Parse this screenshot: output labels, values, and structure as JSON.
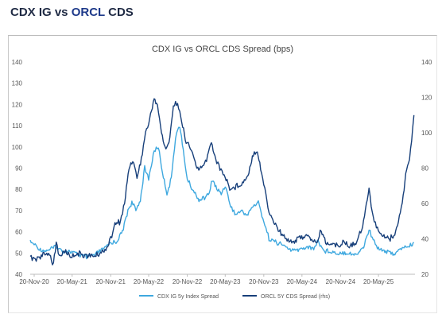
{
  "header": {
    "title_prefix": "CDX IG vs ",
    "title_accent": "ORCL",
    "title_suffix": " CDS"
  },
  "colors": {
    "cdx_ig": "#3ea8df",
    "orcl": "#173f7a",
    "title_accent": "#1e3a8a"
  },
  "chart_data": {
    "type": "line",
    "title": "CDX IG vs ORCL CDS Spread (bps)",
    "x_ticks": [
      "20-Nov-20",
      "20-May-21",
      "20-Nov-21",
      "20-May-22",
      "20-Nov-22",
      "20-May-23",
      "20-Nov-23",
      "20-May-24",
      "20-Nov-24",
      "20-May-25"
    ],
    "xlim": [
      "2020-11-01",
      "2025-11-10"
    ],
    "y_left": {
      "lim": [
        40,
        140
      ],
      "ticks": [
        40,
        50,
        60,
        70,
        80,
        90,
        100,
        110,
        120,
        130,
        140
      ]
    },
    "y_right": {
      "lim": [
        20,
        140
      ],
      "ticks": [
        20,
        40,
        60,
        80,
        100,
        120,
        140
      ],
      "label": ""
    },
    "legend": "bottom-center",
    "grid": false,
    "series": [
      {
        "name": "CDX IG 5y Index Spread",
        "axis": "left",
        "color": "#3ea8df",
        "points": [
          [
            "2020-11-01",
            55
          ],
          [
            "2020-11-20",
            54
          ],
          [
            "2020-12-15",
            52
          ],
          [
            "2021-01-10",
            51
          ],
          [
            "2021-02-05",
            52
          ],
          [
            "2021-03-05",
            53
          ],
          [
            "2021-04-01",
            51
          ],
          [
            "2021-05-01",
            51
          ],
          [
            "2021-06-01",
            50
          ],
          [
            "2021-07-01",
            49
          ],
          [
            "2021-08-01",
            48
          ],
          [
            "2021-09-01",
            49
          ],
          [
            "2021-10-01",
            51
          ],
          [
            "2021-11-01",
            53
          ],
          [
            "2021-11-20",
            55
          ],
          [
            "2021-12-15",
            55
          ],
          [
            "2022-01-15",
            60
          ],
          [
            "2022-02-10",
            70
          ],
          [
            "2022-03-01",
            74
          ],
          [
            "2022-03-20",
            70
          ],
          [
            "2022-04-10",
            75
          ],
          [
            "2022-05-01",
            90
          ],
          [
            "2022-05-20",
            85
          ],
          [
            "2022-06-15",
            98
          ],
          [
            "2022-07-05",
            100
          ],
          [
            "2022-07-25",
            88
          ],
          [
            "2022-08-15",
            78
          ],
          [
            "2022-09-05",
            85
          ],
          [
            "2022-09-25",
            105
          ],
          [
            "2022-10-15",
            110
          ],
          [
            "2022-11-05",
            95
          ],
          [
            "2022-11-20",
            85
          ],
          [
            "2022-12-15",
            80
          ],
          [
            "2023-01-15",
            75
          ],
          [
            "2023-02-10",
            76
          ],
          [
            "2023-03-05",
            78
          ],
          [
            "2023-03-20",
            85
          ],
          [
            "2023-04-10",
            80
          ],
          [
            "2023-05-01",
            78
          ],
          [
            "2023-05-20",
            82
          ],
          [
            "2023-06-15",
            72
          ],
          [
            "2023-07-10",
            68
          ],
          [
            "2023-08-05",
            70
          ],
          [
            "2023-09-01",
            68
          ],
          [
            "2023-10-01",
            72
          ],
          [
            "2023-10-25",
            74
          ],
          [
            "2023-11-20",
            65
          ],
          [
            "2023-12-15",
            57
          ],
          [
            "2024-01-15",
            55
          ],
          [
            "2024-02-15",
            54
          ],
          [
            "2024-03-15",
            52
          ],
          [
            "2024-04-15",
            51
          ],
          [
            "2024-05-15",
            52
          ],
          [
            "2024-06-15",
            53
          ],
          [
            "2024-07-15",
            52
          ],
          [
            "2024-08-05",
            56
          ],
          [
            "2024-09-01",
            51
          ],
          [
            "2024-10-01",
            51
          ],
          [
            "2024-11-01",
            50
          ],
          [
            "2024-12-01",
            50
          ],
          [
            "2025-01-01",
            50
          ],
          [
            "2025-02-01",
            49
          ],
          [
            "2025-03-10",
            53
          ],
          [
            "2025-04-05",
            61
          ],
          [
            "2025-04-20",
            57
          ],
          [
            "2025-05-15",
            53
          ],
          [
            "2025-06-15",
            51
          ],
          [
            "2025-07-15",
            50
          ],
          [
            "2025-08-15",
            50
          ],
          [
            "2025-09-15",
            53
          ],
          [
            "2025-10-15",
            53
          ],
          [
            "2025-11-05",
            55
          ]
        ]
      },
      {
        "name": "ORCL 5Y CDS Spread (rhs)",
        "axis": "right",
        "color": "#173f7a",
        "points": [
          [
            "2020-11-01",
            30
          ],
          [
            "2020-11-20",
            28
          ],
          [
            "2020-12-15",
            30
          ],
          [
            "2021-01-10",
            31
          ],
          [
            "2021-02-01",
            32
          ],
          [
            "2021-02-20",
            25
          ],
          [
            "2021-03-05",
            38
          ],
          [
            "2021-03-20",
            30
          ],
          [
            "2021-04-15",
            33
          ],
          [
            "2021-05-15",
            30
          ],
          [
            "2021-06-15",
            32
          ],
          [
            "2021-07-15",
            31
          ],
          [
            "2021-08-15",
            30
          ],
          [
            "2021-09-15",
            31
          ],
          [
            "2021-10-15",
            33
          ],
          [
            "2021-11-01",
            35
          ],
          [
            "2021-11-20",
            40
          ],
          [
            "2021-12-10",
            48
          ],
          [
            "2022-01-05",
            50
          ],
          [
            "2022-01-25",
            60
          ],
          [
            "2022-02-15",
            80
          ],
          [
            "2022-03-05",
            85
          ],
          [
            "2022-03-25",
            75
          ],
          [
            "2022-04-15",
            85
          ],
          [
            "2022-05-05",
            100
          ],
          [
            "2022-05-20",
            105
          ],
          [
            "2022-06-15",
            120
          ],
          [
            "2022-07-01",
            115
          ],
          [
            "2022-07-20",
            100
          ],
          [
            "2022-08-10",
            90
          ],
          [
            "2022-08-25",
            95
          ],
          [
            "2022-09-15",
            115
          ],
          [
            "2022-10-05",
            118
          ],
          [
            "2022-10-25",
            105
          ],
          [
            "2022-11-15",
            95
          ],
          [
            "2022-12-10",
            90
          ],
          [
            "2023-01-05",
            80
          ],
          [
            "2023-02-01",
            80
          ],
          [
            "2023-02-20",
            85
          ],
          [
            "2023-03-15",
            95
          ],
          [
            "2023-04-05",
            85
          ],
          [
            "2023-04-25",
            80
          ],
          [
            "2023-05-20",
            75
          ],
          [
            "2023-06-15",
            68
          ],
          [
            "2023-07-15",
            70
          ],
          [
            "2023-08-15",
            72
          ],
          [
            "2023-09-10",
            78
          ],
          [
            "2023-10-01",
            88
          ],
          [
            "2023-10-20",
            90
          ],
          [
            "2023-11-05",
            80
          ],
          [
            "2023-11-25",
            68
          ],
          [
            "2023-12-15",
            55
          ],
          [
            "2024-01-15",
            48
          ],
          [
            "2024-02-15",
            42
          ],
          [
            "2024-03-15",
            40
          ],
          [
            "2024-04-10",
            38
          ],
          [
            "2024-05-01",
            40
          ],
          [
            "2024-06-01",
            42
          ],
          [
            "2024-07-01",
            40
          ],
          [
            "2024-08-01",
            38
          ],
          [
            "2024-08-20",
            45
          ],
          [
            "2024-09-10",
            38
          ],
          [
            "2024-10-10",
            37
          ],
          [
            "2024-11-05",
            36
          ],
          [
            "2024-12-01",
            38
          ],
          [
            "2025-01-01",
            36
          ],
          [
            "2025-02-01",
            38
          ],
          [
            "2025-03-01",
            45
          ],
          [
            "2025-04-05",
            68
          ],
          [
            "2025-04-20",
            55
          ],
          [
            "2025-05-15",
            45
          ],
          [
            "2025-06-15",
            42
          ],
          [
            "2025-07-15",
            40
          ],
          [
            "2025-08-10",
            44
          ],
          [
            "2025-09-01",
            55
          ],
          [
            "2025-09-15",
            65
          ],
          [
            "2025-10-01",
            80
          ],
          [
            "2025-10-15",
            85
          ],
          [
            "2025-10-25",
            95
          ],
          [
            "2025-11-05",
            110
          ]
        ]
      }
    ]
  }
}
